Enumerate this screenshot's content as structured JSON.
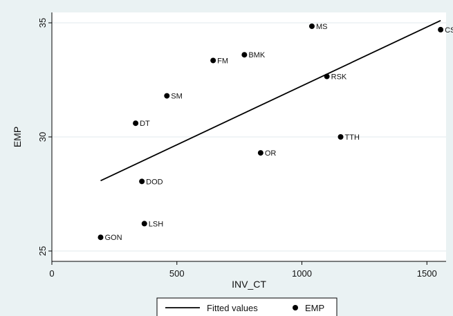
{
  "chart_data": {
    "type": "scatter",
    "xlabel": "INV_CT",
    "ylabel": "EMP",
    "xlim": [
      0,
      1560
    ],
    "ylim": [
      25,
      35
    ],
    "xticks": [
      0,
      500,
      1000,
      1500
    ],
    "yticks": [
      25,
      30,
      35
    ],
    "grid": "horizontal",
    "legend_position": "bottom-center",
    "series": [
      {
        "name": "EMP",
        "points": [
          {
            "label": "CS",
            "x": 1555,
            "y": 34.7
          },
          {
            "label": "MS",
            "x": 1040,
            "y": 34.85
          },
          {
            "label": "BMK",
            "x": 770,
            "y": 33.6
          },
          {
            "label": "FM",
            "x": 645,
            "y": 33.35
          },
          {
            "label": "RSK",
            "x": 1100,
            "y": 32.65
          },
          {
            "label": "SM",
            "x": 460,
            "y": 31.8
          },
          {
            "label": "DT",
            "x": 335,
            "y": 30.6
          },
          {
            "label": "TTH",
            "x": 1155,
            "y": 30.0
          },
          {
            "label": "OR",
            "x": 835,
            "y": 29.3
          },
          {
            "label": "DOD",
            "x": 360,
            "y": 28.05
          },
          {
            "label": "LSH",
            "x": 370,
            "y": 26.2
          },
          {
            "label": "GON",
            "x": 195,
            "y": 25.6
          }
        ]
      },
      {
        "name": "Fitted values",
        "line": [
          {
            "x": 195,
            "y": 28.08
          },
          {
            "x": 1555,
            "y": 35.1
          }
        ]
      }
    ],
    "legend": [
      "Fitted values",
      "EMP"
    ]
  },
  "colors": {
    "background": "#eaf2f3",
    "plot_area": "#ffffff",
    "grid": "#e6eef0",
    "marker": "#000000",
    "line": "#000000"
  }
}
